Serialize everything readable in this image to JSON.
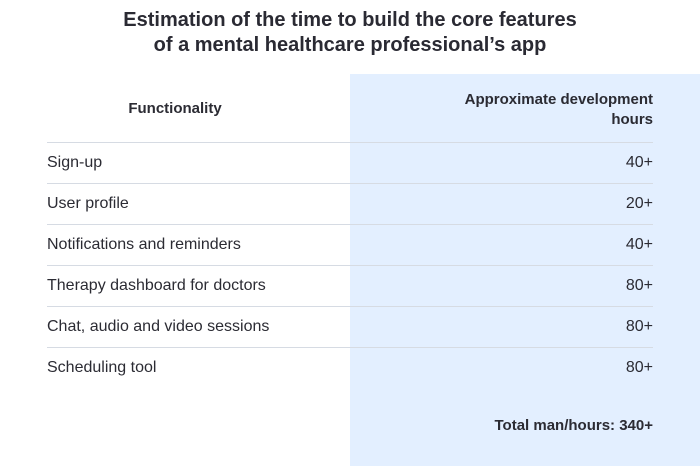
{
  "title": {
    "line1": "Estimation of the time to build the core features",
    "line2": "of a mental healthcare professional’s app"
  },
  "table": {
    "headers": {
      "functionality": "Functionality",
      "hours_line1": "Approximate development",
      "hours_line2": "hours"
    },
    "rows": [
      {
        "functionality": "Sign-up",
        "hours": "40+"
      },
      {
        "functionality": "User profile",
        "hours": "20+"
      },
      {
        "functionality": "Notifications and reminders",
        "hours": "40+"
      },
      {
        "functionality": "Therapy dashboard for doctors",
        "hours": "80+"
      },
      {
        "functionality": "Chat, audio and video sessions",
        "hours": "80+"
      },
      {
        "functionality": "Scheduling tool",
        "hours": "80+"
      }
    ],
    "total": "Total man/hours: 340+"
  },
  "colors": {
    "highlight_column": "#e3efff",
    "divider": "#d6dbe3",
    "text": "#2b2b33"
  }
}
